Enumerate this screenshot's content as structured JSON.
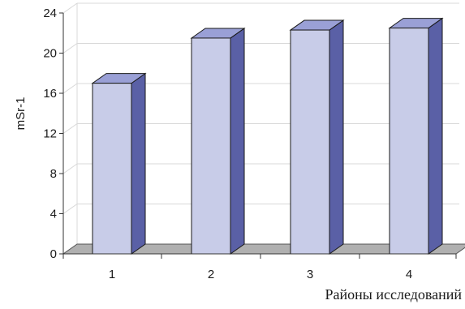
{
  "chart_data": {
    "type": "bar",
    "style": "3d-column",
    "categories": [
      "1",
      "2",
      "3",
      "4"
    ],
    "values": [
      17.0,
      21.5,
      22.3,
      22.5
    ],
    "ylabel": "mSr-1",
    "xlabel": "Районы исследований",
    "ylim": [
      0,
      24
    ],
    "yticks": [
      "0",
      "4",
      "8",
      "12",
      "16",
      "20",
      "24"
    ],
    "grid": true,
    "legend": "none",
    "colors": {
      "bar_front": "#c8cce8",
      "bar_top": "#9aa0d6",
      "bar_side": "#5a60a6",
      "bar_outline": "#1a1a1a",
      "floor": "#b0b0b0",
      "grid": "#d8d8d8",
      "axis": "#333333"
    }
  }
}
